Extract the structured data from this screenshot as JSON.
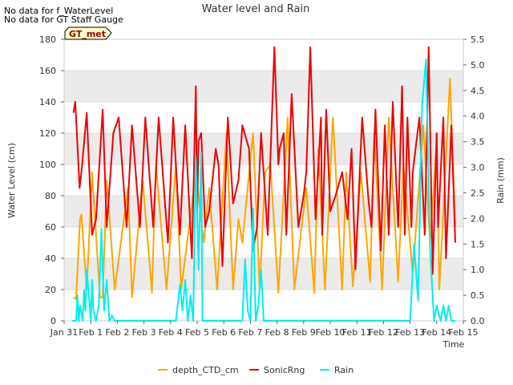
{
  "notes": [
    "No data for f_WaterLevel",
    "No data for GT Staff Gauge"
  ],
  "chart_data": {
    "type": "line",
    "title": "Water level and Rain",
    "badge": "GT_met",
    "xlabel": "Time",
    "ylabel_left": "Water Level (cm)",
    "ylabel_right": "Rain (mm)",
    "xlim": [
      0,
      15
    ],
    "ylim_left": [
      0,
      180
    ],
    "ylim_right": [
      0,
      5.5
    ],
    "x_ticks": [
      {
        "x": 0,
        "label": "Jan 31"
      },
      {
        "x": 1,
        "label": "Feb 1"
      },
      {
        "x": 2,
        "label": "Feb 2"
      },
      {
        "x": 3,
        "label": "Feb 3"
      },
      {
        "x": 4,
        "label": "Feb 4"
      },
      {
        "x": 5,
        "label": "Feb 5"
      },
      {
        "x": 6,
        "label": "Feb 6"
      },
      {
        "x": 7,
        "label": "Feb 7"
      },
      {
        "x": 8,
        "label": "Feb 8"
      },
      {
        "x": 9,
        "label": "Feb 9"
      },
      {
        "x": 10,
        "label": "Feb 10"
      },
      {
        "x": 11,
        "label": "Feb 11"
      },
      {
        "x": 12,
        "label": "Feb 12"
      },
      {
        "x": 13,
        "label": "Feb 13"
      },
      {
        "x": 14,
        "label": "Feb 14"
      },
      {
        "x": 15,
        "label": "Feb 15"
      }
    ],
    "y_ticks_left": [
      0,
      20,
      40,
      60,
      80,
      100,
      120,
      140,
      160,
      180
    ],
    "y_ticks_right": [
      "0.0",
      "0.5",
      "1.0",
      "1.5",
      "2.0",
      "2.5",
      "3.0",
      "3.5",
      "4.0",
      "4.5",
      "5.0",
      "5.5"
    ],
    "grid": "horizontal-bands",
    "legend_position": "bottom",
    "series": [
      {
        "name": "depth_CTD_cm",
        "axis": "left",
        "color": "#FFA500",
        "x": [
          0.35,
          0.45,
          0.6,
          0.65,
          0.85,
          1.05,
          1.35,
          1.45,
          1.6,
          1.9,
          2.4,
          2.55,
          2.95,
          3.3,
          3.45,
          3.85,
          4.2,
          4.4,
          4.95,
          5.25,
          5.45,
          5.75,
          6.1,
          6.35,
          6.55,
          6.7,
          7.1,
          7.35,
          7.55,
          7.75,
          8.05,
          8.4,
          8.65,
          9.1,
          9.4,
          9.55,
          9.8,
          10.1,
          10.45,
          10.6,
          10.85,
          11.15,
          11.5,
          11.65,
          11.95,
          12.2,
          12.55,
          12.75,
          13.1,
          13.5,
          13.75,
          14.0,
          14.1,
          14.5,
          14.7
        ],
        "y": [
          15,
          14,
          65,
          68,
          20,
          95,
          15,
          15,
          90,
          20,
          85,
          15,
          90,
          18,
          100,
          20,
          100,
          20,
          95,
          50,
          85,
          20,
          120,
          20,
          65,
          50,
          120,
          20,
          95,
          100,
          18,
          130,
          20,
          85,
          18,
          110,
          20,
          130,
          20,
          95,
          22,
          95,
          25,
          120,
          20,
          130,
          25,
          100,
          30,
          125,
          50,
          115,
          20,
          155,
          60
        ]
      },
      {
        "name": "SonicRng",
        "axis": "left",
        "color": "#EE0000",
        "x": [
          0.35,
          0.42,
          0.58,
          0.65,
          0.85,
          1.05,
          1.2,
          1.45,
          1.6,
          1.85,
          2.05,
          2.35,
          2.55,
          2.85,
          3.05,
          3.35,
          3.55,
          3.9,
          4.1,
          4.35,
          4.55,
          4.8,
          4.95,
          5.0,
          5.05,
          5.15,
          5.3,
          5.45,
          5.7,
          5.8,
          5.95,
          6.15,
          6.35,
          6.55,
          6.7,
          6.95,
          7.1,
          7.25,
          7.4,
          7.65,
          7.9,
          8.05,
          8.1,
          8.25,
          8.35,
          8.55,
          8.8,
          9.0,
          9.1,
          9.25,
          9.45,
          9.65,
          9.7,
          9.85,
          10.0,
          10.2,
          10.45,
          10.65,
          10.8,
          10.95,
          11.2,
          11.45,
          11.55,
          11.7,
          11.9,
          12.05,
          12.2,
          12.35,
          12.55,
          12.7,
          12.8,
          12.9,
          13.05,
          13.1,
          13.35,
          13.55,
          13.7,
          13.85,
          14.0,
          14.05,
          14.25,
          14.35,
          14.55,
          14.7
        ],
        "y": [
          133,
          140,
          85,
          95,
          133,
          55,
          65,
          135,
          60,
          120,
          130,
          60,
          125,
          60,
          130,
          60,
          130,
          50,
          130,
          55,
          125,
          40,
          150,
          70,
          115,
          120,
          60,
          70,
          110,
          100,
          35,
          130,
          75,
          90,
          125,
          110,
          45,
          60,
          120,
          55,
          175,
          100,
          110,
          120,
          55,
          145,
          60,
          80,
          95,
          175,
          65,
          130,
          55,
          135,
          70,
          80,
          95,
          65,
          110,
          33,
          130,
          75,
          60,
          135,
          45,
          125,
          55,
          140,
          60,
          150,
          55,
          130,
          60,
          95,
          130,
          55,
          175,
          30,
          120,
          60,
          130,
          40,
          125,
          50
        ]
      },
      {
        "name": "Rain",
        "axis": "right",
        "color": "#00EEEE",
        "x": [
          0.3,
          0.45,
          0.5,
          0.55,
          0.6,
          0.7,
          0.75,
          0.8,
          0.85,
          0.95,
          1.0,
          1.05,
          1.1,
          1.2,
          1.3,
          1.4,
          1.5,
          1.6,
          1.7,
          1.8,
          1.9,
          2.0,
          4.2,
          4.35,
          4.45,
          4.55,
          4.65,
          4.75,
          4.85,
          4.95,
          5.05,
          5.15,
          5.2,
          5.3,
          6.7,
          6.8,
          6.9,
          7.0,
          7.1,
          7.2,
          7.3,
          7.4,
          7.5,
          12.5,
          13.0,
          13.15,
          13.3,
          13.45,
          13.6,
          13.75,
          13.9,
          14.0,
          14.15,
          14.25,
          14.35,
          14.45,
          14.55,
          14.7
        ],
        "y": [
          0.0,
          0.0,
          0.5,
          0.0,
          0.3,
          0.0,
          0.6,
          0.2,
          1.0,
          0.4,
          0.0,
          0.8,
          0.2,
          0.0,
          0.3,
          1.8,
          0.2,
          0.8,
          0.0,
          0.1,
          0.0,
          0.0,
          0.0,
          0.7,
          0.2,
          0.8,
          0.0,
          0.5,
          0.0,
          3.2,
          1.0,
          3.3,
          0.0,
          0.0,
          0.0,
          1.2,
          0.2,
          0.0,
          2.2,
          0.0,
          0.3,
          1.0,
          0.0,
          0.0,
          0.0,
          1.5,
          0.4,
          4.2,
          5.1,
          1.4,
          0.0,
          0.3,
          0.0,
          0.3,
          0.0,
          0.3,
          0.0,
          0.0
        ]
      }
    ]
  }
}
